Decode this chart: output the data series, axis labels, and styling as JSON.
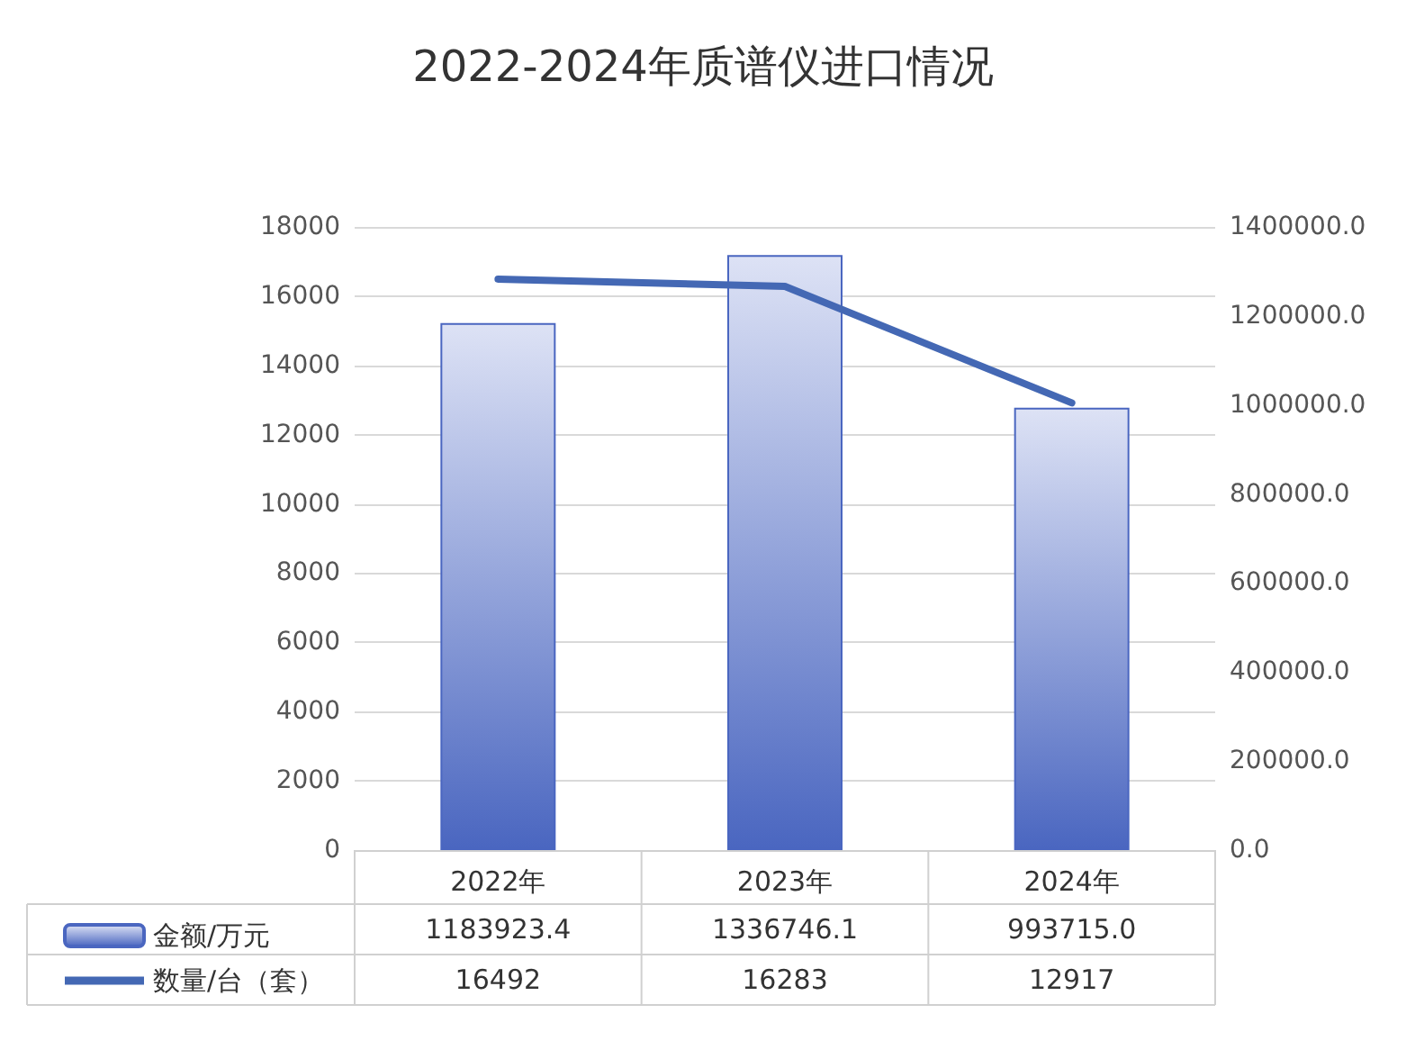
{
  "chart_data": {
    "type": "bar",
    "title": "2022-2024年质谱仪进口情况",
    "categories": [
      "2022年",
      "2023年",
      "2024年"
    ],
    "series": [
      {
        "name": "金额/万元",
        "axis": "y2",
        "color": "#4a66c0",
        "values": [
          1183923.4,
          1336746.1,
          993715.0
        ],
        "value_labels": [
          "1183923.4",
          "1336746.1",
          "993715.0"
        ]
      },
      {
        "name": "数量/台（套）",
        "type": "line",
        "color": "#4468b4",
        "values": [
          16492,
          16283,
          12917
        ],
        "value_labels": [
          "16492",
          "16283",
          "12917"
        ]
      }
    ],
    "ylim": [
      0,
      18000
    ],
    "yticks": [
      0,
      2000,
      4000,
      6000,
      8000,
      10000,
      12000,
      14000,
      16000,
      18000
    ],
    "y2lim": [
      0,
      1400000
    ],
    "y2ticks": [
      {
        "value": 0,
        "label": "0.0"
      },
      {
        "value": 200000,
        "label": "200000.0"
      },
      {
        "value": 400000,
        "label": "400000.0"
      },
      {
        "value": 600000,
        "label": "600000.0"
      },
      {
        "value": 800000,
        "label": "800000.0"
      },
      {
        "value": 1000000,
        "label": "1000000.0"
      },
      {
        "value": 1200000,
        "label": "1200000.0"
      },
      {
        "value": 1400000,
        "label": "1400000.0"
      }
    ],
    "grid": "y",
    "legend": "bottom left",
    "marker": "none",
    "line_style": "solid"
  }
}
